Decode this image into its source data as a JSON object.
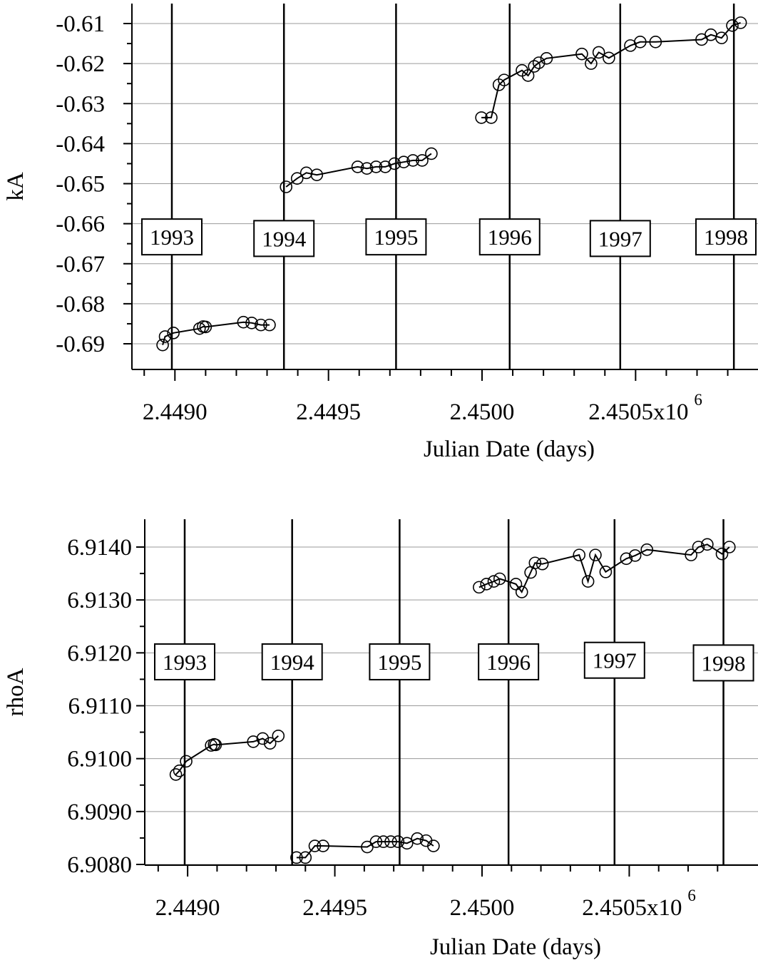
{
  "chart_data": [
    {
      "type": "scatter",
      "ylabel": "kA",
      "xlabel": "Julian Date (days)",
      "x_tick_labels": [
        "2.4490",
        "2.4495",
        "2.4500",
        "2.4505x10"
      ],
      "x_exponent": "6",
      "y_tick_labels": [
        "-0.61",
        "-0.62",
        "-0.63",
        "-0.64",
        "-0.65",
        "-0.66",
        "-0.67",
        "-0.68",
        "-0.69"
      ],
      "y_ticks": [
        -0.61,
        -0.62,
        -0.63,
        -0.64,
        -0.65,
        -0.66,
        -0.67,
        -0.68,
        -0.69
      ],
      "xlim": [
        2448890,
        2450860
      ],
      "ylim": [
        -0.6955,
        -0.605
      ],
      "grid": "horizontal",
      "year_markers": [
        {
          "label": "1993",
          "x": 2448990,
          "label_y": -0.6633
        },
        {
          "label": "1994",
          "x": 2449355,
          "label_y": -0.6637
        },
        {
          "label": "1995",
          "x": 2449720,
          "label_y": -0.6633
        },
        {
          "label": "1996",
          "x": 2450090,
          "label_y": -0.6633
        },
        {
          "label": "1997",
          "x": 2450450,
          "label_y": -0.6637
        },
        {
          "label": "1998",
          "x": 2450820,
          "label_y": -0.6633
        }
      ],
      "segments": [
        {
          "x": [
            2448960,
            2448968,
            2448995,
            2449080,
            2449092,
            2449100,
            2449223,
            2449250,
            2449280,
            2449308
          ],
          "y": [
            -0.6903,
            -0.6882,
            -0.6873,
            -0.6862,
            -0.6857,
            -0.6858,
            -0.6846,
            -0.6848,
            -0.6853,
            -0.6853
          ]
        },
        {
          "x": [
            2449362,
            2449398,
            2449428,
            2449462,
            2449595,
            2449625,
            2449655,
            2449685,
            2449715,
            2449745,
            2449775,
            2449805,
            2449835
          ],
          "y": [
            -0.6508,
            -0.6487,
            -0.6473,
            -0.6478,
            -0.6458,
            -0.6462,
            -0.6458,
            -0.6458,
            -0.645,
            -0.6446,
            -0.6442,
            -0.6442,
            -0.6425
          ]
        },
        {
          "x": [
            2449998,
            2450030,
            2450055,
            2450072,
            2450130,
            2450150,
            2450170,
            2450185,
            2450210,
            2450325,
            2450355,
            2450380,
            2450413,
            2450483,
            2450515,
            2450565,
            2450715,
            2450745,
            2450780,
            2450815,
            2450842
          ],
          "y": [
            -0.6335,
            -0.6335,
            -0.6253,
            -0.6241,
            -0.6217,
            -0.623,
            -0.6207,
            -0.6198,
            -0.6187,
            -0.6176,
            -0.62,
            -0.6172,
            -0.6186,
            -0.6155,
            -0.6146,
            -0.6146,
            -0.614,
            -0.6128,
            -0.6136,
            -0.6105,
            -0.6098
          ]
        }
      ]
    },
    {
      "type": "scatter",
      "ylabel": "rhoA",
      "xlabel": "Julian Date (days)",
      "x_tick_labels": [
        "2.4490",
        "2.4495",
        "2.4500",
        "2.4505x10"
      ],
      "x_exponent": "6",
      "y_tick_labels": [
        "6.9140",
        "6.9130",
        "6.9120",
        "6.9110",
        "6.9100",
        "6.9090",
        "6.9080"
      ],
      "y_ticks": [
        6.914,
        6.913,
        6.912,
        6.911,
        6.91,
        6.909,
        6.908
      ],
      "xlim": [
        2448890,
        2450860
      ],
      "ylim": [
        6.90787,
        6.91455
      ],
      "grid": "horizontal",
      "year_markers": [
        {
          "label": "1993",
          "x": 2448990,
          "label_y": 6.91183
        },
        {
          "label": "1994",
          "x": 2449355,
          "label_y": 6.91183
        },
        {
          "label": "1995",
          "x": 2449720,
          "label_y": 6.91183
        },
        {
          "label": "1996",
          "x": 2450090,
          "label_y": 6.91183
        },
        {
          "label": "1997",
          "x": 2450450,
          "label_y": 6.91186
        },
        {
          "label": "1998",
          "x": 2450820,
          "label_y": 6.91181
        }
      ],
      "segments": [
        {
          "x": [
            2448960,
            2448972,
            2448995,
            2449080,
            2449090,
            2449095,
            2449223,
            2449255,
            2449280,
            2449308
          ],
          "y": [
            6.9097,
            6.90977,
            6.90995,
            6.91025,
            6.91027,
            6.91026,
            6.91032,
            6.91038,
            6.91029,
            6.91043
          ]
        },
        {
          "x": [
            2449370,
            2449400,
            2449432,
            2449460,
            2449610,
            2449640,
            2449665,
            2449690,
            2449715,
            2449745,
            2449780,
            2449810,
            2449835
          ],
          "y": [
            6.90813,
            6.90813,
            6.90835,
            6.90835,
            6.90833,
            6.90843,
            6.90843,
            6.90843,
            6.90843,
            6.9084,
            6.90849,
            6.90845,
            6.90835
          ]
        },
        {
          "x": [
            2449990,
            2450015,
            2450040,
            2450060,
            2450115,
            2450135,
            2450165,
            2450180,
            2450205,
            2450330,
            2450360,
            2450385,
            2450420,
            2450490,
            2450520,
            2450560,
            2450710,
            2450735,
            2450765,
            2450815,
            2450840
          ],
          "y": [
            6.91324,
            6.9133,
            6.91335,
            6.9134,
            6.9133,
            6.91315,
            6.91352,
            6.9137,
            6.91368,
            6.91385,
            6.91335,
            6.91385,
            6.91353,
            6.91378,
            6.91384,
            6.91395,
            6.91385,
            6.914,
            6.91405,
            6.91387,
            6.914
          ]
        }
      ]
    }
  ]
}
